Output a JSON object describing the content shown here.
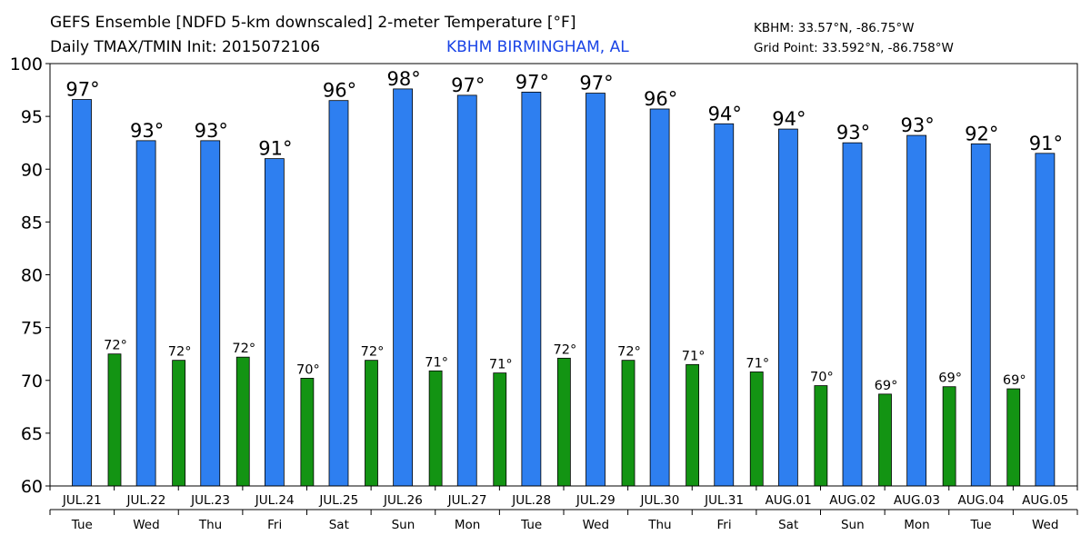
{
  "header": {
    "title_line1": "GEFS Ensemble [NDFD 5-km downscaled] 2-meter Temperature [°F]",
    "title_line2": "Daily TMAX/TMIN Init: 2015072106",
    "station": "KBHM BIRMINGHAM, AL",
    "station_coords": "KBHM: 33.57°N, -86.75°W",
    "grid_point": "Grid Point: 33.592°N, -86.758°W"
  },
  "colors": {
    "tmax": "#2e7ff0",
    "tmin": "#139413",
    "station": "#1a44e6"
  },
  "chart_data": {
    "type": "bar",
    "title": "GEFS Ensemble [NDFD 5-km downscaled] 2-meter Temperature [°F]",
    "ylim": [
      60,
      100
    ],
    "yticks": [
      60,
      65,
      70,
      75,
      80,
      85,
      90,
      95,
      100
    ],
    "categories": [
      "JUL.21",
      "JUL.22",
      "JUL.23",
      "JUL.24",
      "JUL.25",
      "JUL.26",
      "JUL.27",
      "JUL.28",
      "JUL.29",
      "JUL.30",
      "JUL.31",
      "AUG.01",
      "AUG.02",
      "AUG.03",
      "AUG.04",
      "AUG.05"
    ],
    "weekdays": [
      "Tue",
      "Wed",
      "Thu",
      "Fri",
      "Sat",
      "Sun",
      "Mon",
      "Tue",
      "Wed",
      "Thu",
      "Fri",
      "Sat",
      "Sun",
      "Mon",
      "Tue",
      "Wed"
    ],
    "series": [
      {
        "name": "TMAX",
        "values": [
          96.6,
          92.7,
          92.7,
          91.0,
          96.5,
          97.6,
          97.0,
          97.3,
          97.2,
          95.7,
          94.3,
          93.8,
          92.5,
          93.2,
          92.4,
          91.5
        ],
        "labels": [
          "97°",
          "93°",
          "93°",
          "91°",
          "96°",
          "98°",
          "97°",
          "97°",
          "97°",
          "96°",
          "94°",
          "94°",
          "93°",
          "93°",
          "92°",
          "91°"
        ]
      },
      {
        "name": "TMIN",
        "values": [
          72.5,
          71.9,
          72.2,
          70.2,
          71.9,
          70.9,
          70.7,
          72.1,
          71.9,
          71.5,
          70.8,
          69.5,
          68.7,
          69.4,
          69.2,
          null
        ],
        "labels": [
          "72°",
          "72°",
          "72°",
          "70°",
          "72°",
          "71°",
          "71°",
          "72°",
          "72°",
          "71°",
          "71°",
          "70°",
          "69°",
          "69°",
          "69°",
          ""
        ]
      }
    ]
  }
}
